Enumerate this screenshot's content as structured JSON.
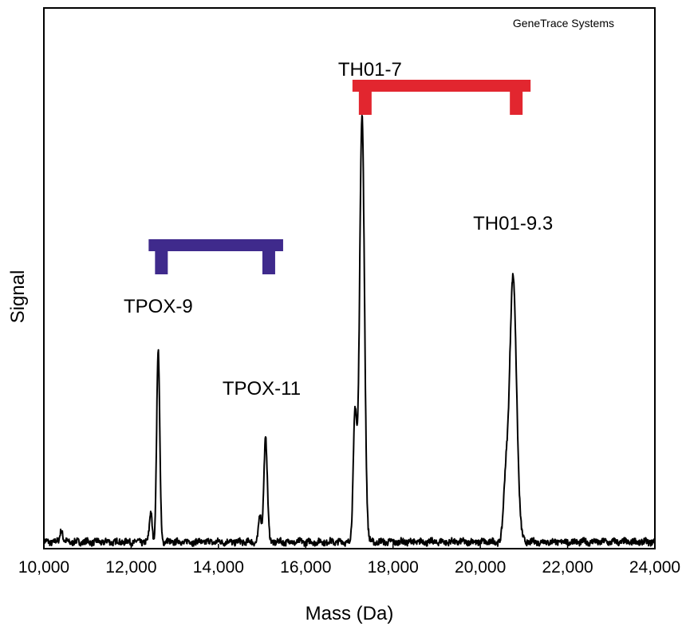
{
  "chart_data": {
    "type": "line",
    "title": "",
    "watermark": "GeneTrace Systems",
    "xlabel": "Mass (Da)",
    "ylabel": "Signal",
    "xlim": [
      10000,
      24000
    ],
    "ylim": [
      0,
      1
    ],
    "x_ticks": [
      10000,
      12000,
      14000,
      16000,
      18000,
      20000,
      22000,
      24000
    ],
    "x_tick_labels": [
      "10,000",
      "12,000",
      "14,000",
      "16,000",
      "18,000",
      "20,000",
      "22,000",
      "24,000"
    ],
    "y_ticks_shown": false,
    "grid": false,
    "baseline": 0.01,
    "peaks": [
      {
        "label": "",
        "x": 10400,
        "height": 0.03,
        "width": 30
      },
      {
        "label": "",
        "x": 12450,
        "height": 0.07,
        "width": 30
      },
      {
        "label": "TPOX-9",
        "x": 12620,
        "height": 0.44,
        "width": 35
      },
      {
        "label": "",
        "x": 14950,
        "height": 0.06,
        "width": 30
      },
      {
        "label": "TPOX-11",
        "x": 15080,
        "height": 0.24,
        "width": 40
      },
      {
        "label": "",
        "x": 17130,
        "height": 0.3,
        "width": 40
      },
      {
        "label": "TH01-7",
        "x": 17290,
        "height": 0.98,
        "width": 55
      },
      {
        "label": "",
        "x": 20580,
        "height": 0.12,
        "width": 50
      },
      {
        "label": "TH01-9.3",
        "x": 20750,
        "height": 0.61,
        "width": 80
      }
    ],
    "labels": [
      {
        "text": "TPOX-9",
        "x": 12620
      },
      {
        "text": "TPOX-11",
        "x": 15080
      },
      {
        "text": "TH01-7",
        "x": 17290
      },
      {
        "text": "TH01-9.3",
        "x": 20750
      }
    ],
    "brackets": [
      {
        "name": "TPOX",
        "from": 12620,
        "to": 15080,
        "color": "#3f2a8c"
      },
      {
        "name": "TH01",
        "from": 17290,
        "to": 20750,
        "color": "#e2262f"
      }
    ]
  }
}
